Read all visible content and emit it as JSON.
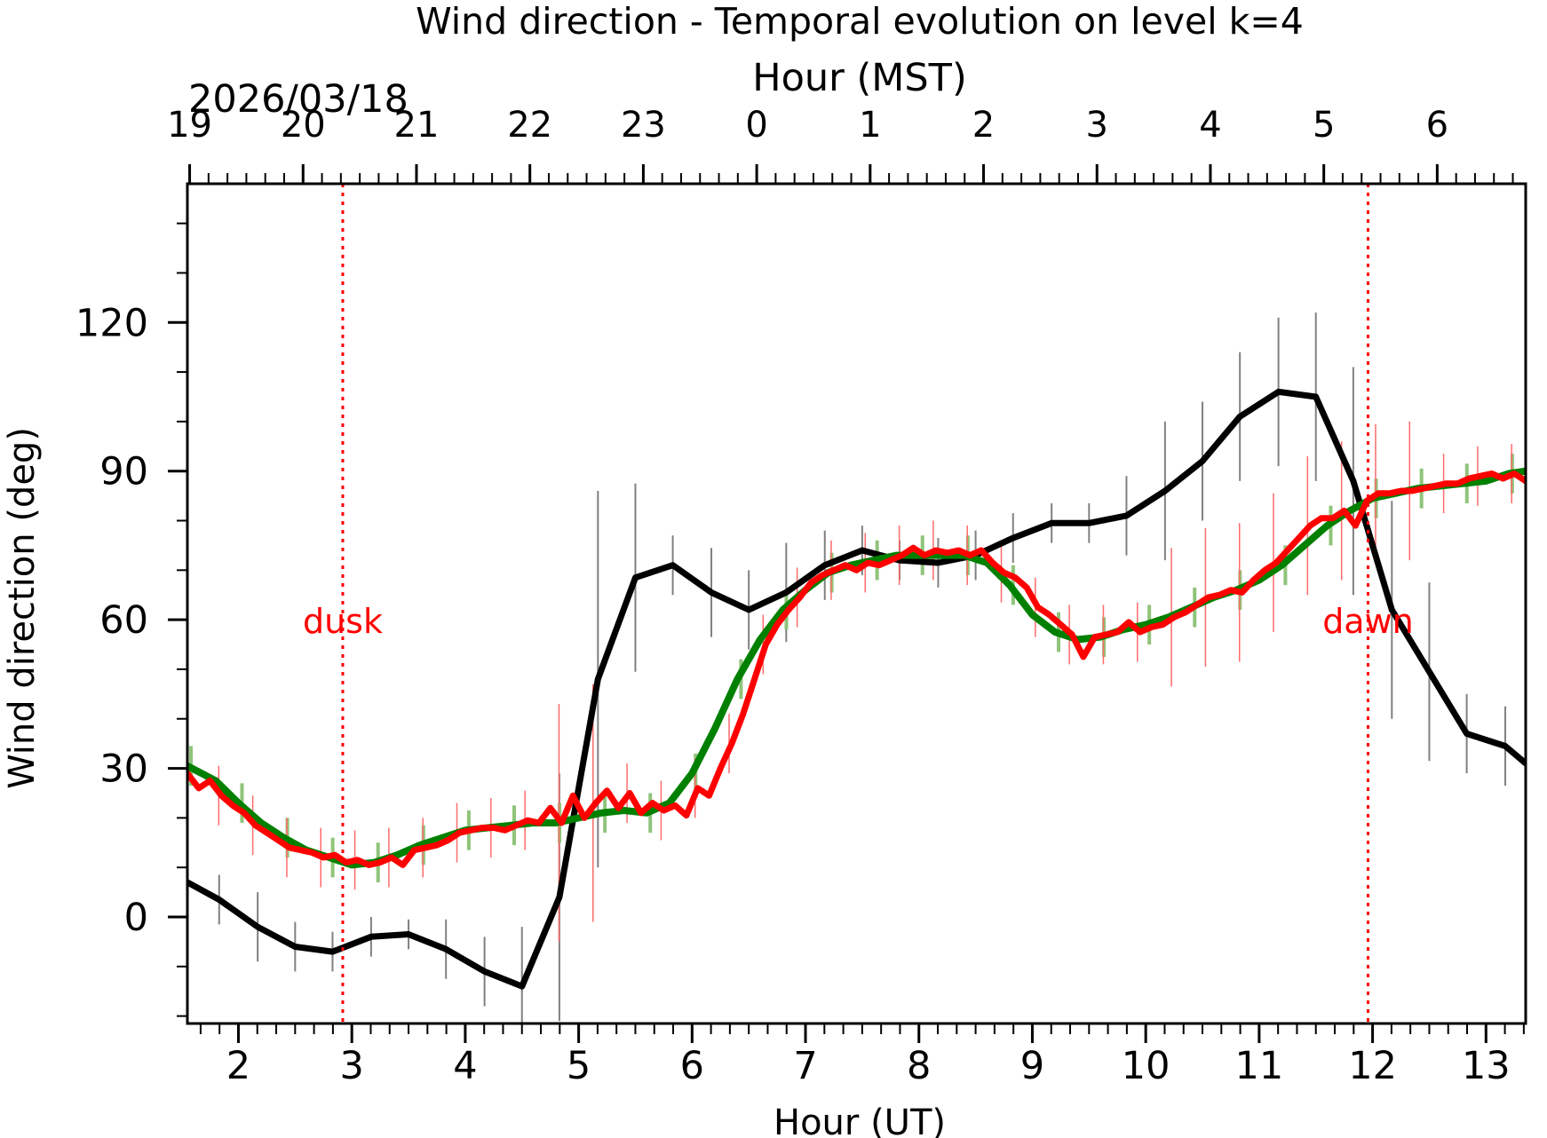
{
  "chart_data": {
    "type": "line",
    "title": "Wind direction - Temporal evolution on level k=4",
    "xlabel": "Hour (UT)",
    "ylabel": "Wind direction (deg)",
    "top_axis_label": "Hour (MST)",
    "date_label": "2026/03/18",
    "xlim": [
      1.55,
      13.35
    ],
    "ylim": [
      -21.5,
      148
    ],
    "x_ticks": [
      2,
      3,
      4,
      5,
      6,
      7,
      8,
      9,
      10,
      11,
      12,
      13
    ],
    "x_tick_labels": [
      "2",
      "3",
      "4",
      "5",
      "6",
      "7",
      "8",
      "9",
      "10",
      "11",
      "12",
      "13"
    ],
    "y_ticks": [
      0,
      30,
      60,
      90,
      120
    ],
    "y_tick_labels": [
      "0",
      "30",
      "60",
      "90",
      "120"
    ],
    "top_ticks_ut": [
      1.57,
      2.57,
      3.57,
      4.57,
      5.57,
      6.57,
      7.57,
      8.57,
      9.57,
      10.57,
      11.57,
      12.57
    ],
    "top_tick_labels": [
      "19",
      "20",
      "21",
      "22",
      "23",
      "0",
      "1",
      "2",
      "3",
      "4",
      "5",
      "6"
    ],
    "grid": false,
    "legend": "none",
    "annotations": [
      {
        "text": "dusk",
        "x": 2.92,
        "color": "#ff0000"
      },
      {
        "text": "dawn",
        "x": 11.96,
        "color": "#ff0000"
      }
    ],
    "series": [
      {
        "color": "#000000",
        "x": [
          1.55,
          1.83,
          2.17,
          2.5,
          2.83,
          3.17,
          3.5,
          3.83,
          4.17,
          4.5,
          4.83,
          5.17,
          5.5,
          5.83,
          6.17,
          6.5,
          6.83,
          7.17,
          7.5,
          7.83,
          8.17,
          8.5,
          8.83,
          9.17,
          9.5,
          9.83,
          10.17,
          10.5,
          10.83,
          11.17,
          11.5,
          11.83,
          12.17,
          12.5,
          12.83,
          13.17,
          13.35
        ],
        "y": [
          7,
          3.5,
          -2,
          -6,
          -7,
          -4,
          -3.5,
          -6.5,
          -11,
          -14,
          4,
          48,
          68.5,
          71,
          65.5,
          62,
          65.5,
          71,
          74,
          72,
          71.5,
          73,
          76.5,
          79.5,
          79.5,
          81,
          86,
          92,
          101,
          106,
          105,
          88,
          62,
          49.5,
          37,
          34.5,
          31
        ],
        "err": [
          3,
          5,
          7,
          5,
          4,
          4,
          3,
          6,
          7,
          12,
          25,
          38,
          19,
          6,
          9,
          8,
          10,
          7,
          5,
          4,
          5,
          5,
          5,
          4,
          4,
          8,
          14,
          12,
          13,
          15,
          17,
          23,
          22,
          18,
          8,
          8,
          0
        ]
      },
      {
        "color": "#008000",
        "x": [
          1.55,
          1.8,
          2.0,
          2.2,
          2.4,
          2.6,
          2.8,
          3.0,
          3.2,
          3.4,
          3.6,
          3.8,
          4.0,
          4.2,
          4.4,
          4.6,
          4.8,
          5.0,
          5.2,
          5.4,
          5.6,
          5.8,
          6.0,
          6.2,
          6.4,
          6.6,
          6.8,
          7.0,
          7.2,
          7.4,
          7.6,
          7.8,
          8.0,
          8.2,
          8.4,
          8.6,
          8.8,
          9.0,
          9.2,
          9.4,
          9.6,
          9.8,
          10.0,
          10.2,
          10.4,
          10.6,
          10.8,
          11.0,
          11.2,
          11.4,
          11.6,
          11.8,
          12.0,
          12.2,
          12.4,
          12.6,
          12.8,
          13.0,
          13.2,
          13.35
        ],
        "y": [
          30.5,
          27.5,
          23,
          19,
          16,
          13.5,
          12,
          10.5,
          11,
          12.5,
          14.5,
          16,
          17.5,
          18,
          18.5,
          19,
          19,
          20,
          21,
          21.5,
          21,
          23,
          29,
          38,
          48,
          56,
          62,
          66,
          69.5,
          71,
          72,
          73,
          73,
          73,
          73,
          71.5,
          67,
          61,
          57.5,
          56,
          56.5,
          58,
          59,
          60.5,
          62.5,
          64.5,
          66,
          68,
          71,
          75,
          79,
          82,
          84.5,
          85.5,
          86.5,
          87,
          87.5,
          88,
          89.5,
          90
        ]
      },
      {
        "color": "#ff0000",
        "x": [
          1.55,
          1.65,
          1.75,
          1.85,
          1.95,
          2.05,
          2.15,
          2.25,
          2.35,
          2.45,
          2.55,
          2.65,
          2.75,
          2.85,
          2.95,
          3.05,
          3.15,
          3.25,
          3.35,
          3.45,
          3.55,
          3.65,
          3.75,
          3.85,
          3.95,
          4.05,
          4.15,
          4.25,
          4.35,
          4.45,
          4.55,
          4.65,
          4.75,
          4.85,
          4.95,
          5.05,
          5.15,
          5.25,
          5.35,
          5.45,
          5.55,
          5.65,
          5.75,
          5.85,
          5.95,
          6.05,
          6.15,
          6.25,
          6.35,
          6.45,
          6.55,
          6.65,
          6.75,
          6.85,
          6.95,
          7.05,
          7.15,
          7.25,
          7.35,
          7.45,
          7.55,
          7.65,
          7.75,
          7.85,
          7.95,
          8.05,
          8.15,
          8.25,
          8.35,
          8.45,
          8.55,
          8.65,
          8.75,
          8.85,
          8.95,
          9.05,
          9.15,
          9.25,
          9.35,
          9.45,
          9.55,
          9.65,
          9.75,
          9.85,
          9.95,
          10.05,
          10.15,
          10.25,
          10.35,
          10.45,
          10.55,
          10.65,
          10.75,
          10.85,
          10.95,
          11.05,
          11.15,
          11.25,
          11.35,
          11.45,
          11.55,
          11.65,
          11.75,
          11.85,
          11.95,
          12.05,
          12.15,
          12.25,
          12.35,
          12.45,
          12.55,
          12.65,
          12.75,
          12.85,
          12.95,
          13.05,
          13.15,
          13.25,
          13.35
        ],
        "y": [
          29,
          26,
          27.5,
          24.5,
          22.5,
          21,
          18.5,
          17,
          15.5,
          14,
          13.5,
          13,
          12,
          12.5,
          11,
          11.5,
          10.5,
          11,
          12,
          10.5,
          13.5,
          14,
          14.5,
          15.5,
          17,
          17.5,
          18,
          18,
          17.5,
          18.5,
          19.5,
          19,
          22,
          19,
          24.5,
          20,
          23,
          25.5,
          22,
          25,
          21,
          23,
          21.5,
          22.5,
          20.5,
          26,
          24.5,
          30,
          35,
          41,
          48,
          55,
          59,
          62,
          64.5,
          67.5,
          69,
          70,
          71,
          70,
          71.5,
          71,
          72,
          73,
          74.5,
          73,
          74,
          73.5,
          74,
          73,
          74,
          71.5,
          69.5,
          68.5,
          66.5,
          62.5,
          61,
          59,
          57,
          52.5,
          56.5,
          57,
          57.5,
          59.5,
          57.5,
          58.5,
          59,
          60.5,
          61.5,
          63,
          64.5,
          65,
          66,
          65.5,
          68,
          70,
          71.5,
          74,
          76.5,
          79,
          80.5,
          80.5,
          82,
          79,
          84,
          85.5,
          85.5,
          86,
          86,
          86.5,
          87,
          87.5,
          87.5,
          88.5,
          89,
          89.5,
          88.5,
          89.5,
          88
        ]
      }
    ]
  }
}
